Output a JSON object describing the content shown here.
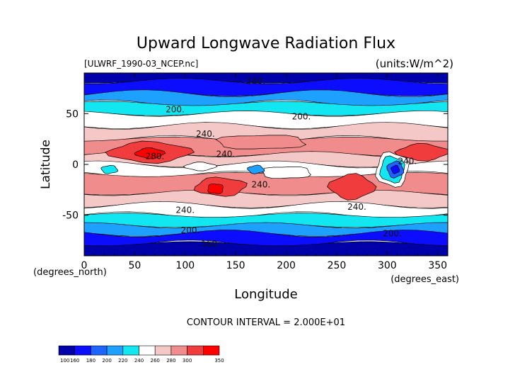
{
  "chart_data": {
    "type": "heatmap",
    "title": "Upward Longwave Radiation Flux",
    "subtitle_left": "[ULWRF_1990-03_NCEP.nc]",
    "subtitle_right": "(units:W/m^2)",
    "xlabel": "Longitude",
    "ylabel": "Latitude",
    "x_unit_label": "(degrees_east)",
    "y_unit_label": "(degrees_north)",
    "xlim": [
      0,
      360
    ],
    "ylim": [
      -90,
      90
    ],
    "x_ticks": [
      0,
      50,
      100,
      150,
      200,
      250,
      300,
      350
    ],
    "y_ticks": [
      -50,
      0,
      50
    ],
    "contour_interval_text": "CONTOUR INTERVAL = 2.000E+01",
    "contour_labels": [
      {
        "text": "160.",
        "lon": 170,
        "lat": 82
      },
      {
        "text": "200.",
        "lon": 90,
        "lat": 54
      },
      {
        "text": "200.",
        "lon": 215,
        "lat": 47
      },
      {
        "text": "240.",
        "lon": 120,
        "lat": 30
      },
      {
        "text": "240.",
        "lon": 140,
        "lat": 10
      },
      {
        "text": "280.",
        "lon": 70,
        "lat": 8
      },
      {
        "text": "240.",
        "lon": 175,
        "lat": -20
      },
      {
        "text": "240.",
        "lon": 320,
        "lat": 3
      },
      {
        "text": "240.",
        "lon": 100,
        "lat": -45
      },
      {
        "text": "240.",
        "lon": 270,
        "lat": -42
      },
      {
        "text": "200.",
        "lon": 105,
        "lat": -65
      },
      {
        "text": "200.",
        "lon": 305,
        "lat": -68
      },
      {
        "text": "160.",
        "lon": 125,
        "lat": -78
      }
    ],
    "colorbar": {
      "levels": [
        "100",
        "160",
        "180",
        "200",
        "220",
        "240",
        "260",
        "280",
        "300",
        "350"
      ],
      "colors": [
        "#0000a8",
        "#0c0cff",
        "#1e64ff",
        "#1ea0ff",
        "#12e6f0",
        "#ffffff",
        "#f5c8c8",
        "#f08c8c",
        "#f03c3c",
        "#ff0000"
      ]
    },
    "zonal_bands": [
      {
        "lat_from": 90,
        "lat_to": 82,
        "color_index": 0
      },
      {
        "lat_from": 82,
        "lat_to": 70,
        "color_index": 1
      },
      {
        "lat_from": 70,
        "lat_to": 60,
        "color_index": 3
      },
      {
        "lat_from": 60,
        "lat_to": 50,
        "color_index": 4
      },
      {
        "lat_from": 50,
        "lat_to": 38,
        "color_index": 5
      },
      {
        "lat_from": 38,
        "lat_to": 25,
        "color_index": 6
      },
      {
        "lat_from": 25,
        "lat_to": 10,
        "color_index": 7
      },
      {
        "lat_from": 10,
        "lat_to": 0,
        "color_index": 6
      },
      {
        "lat_from": 0,
        "lat_to": -10,
        "color_index": 5
      },
      {
        "lat_from": -10,
        "lat_to": -28,
        "color_index": 7
      },
      {
        "lat_from": -28,
        "lat_to": -40,
        "color_index": 6
      },
      {
        "lat_from": -40,
        "lat_to": -50,
        "color_index": 5
      },
      {
        "lat_from": -50,
        "lat_to": -60,
        "color_index": 4
      },
      {
        "lat_from": -60,
        "lat_to": -68,
        "color_index": 3
      },
      {
        "lat_from": -68,
        "lat_to": -78,
        "color_index": 1
      },
      {
        "lat_from": -78,
        "lat_to": -90,
        "color_index": 0
      }
    ],
    "features": [
      {
        "name": "north-africa-arabia-maximum",
        "lon": 65,
        "lat": 12,
        "rlon": 40,
        "rlat": 10,
        "color_index": 8
      },
      {
        "name": "sahara-core-maximum",
        "lon": 65,
        "lat": 11,
        "rlon": 14,
        "rlat": 5,
        "color_index": 9
      },
      {
        "name": "northern-subtropic-pacific-maximum",
        "lon": 175,
        "lat": 22,
        "rlon": 45,
        "rlat": 7,
        "color_index": 7
      },
      {
        "name": "east-pacific-maximum",
        "lon": 335,
        "lat": 12,
        "rlon": 25,
        "rlat": 8,
        "color_index": 8
      },
      {
        "name": "australia-maximum",
        "lon": 135,
        "lat": -22,
        "rlon": 25,
        "rlat": 9,
        "color_index": 8
      },
      {
        "name": "australia-core-maximum",
        "lon": 130,
        "lat": -24,
        "rlon": 8,
        "rlat": 5,
        "color_index": 9
      },
      {
        "name": "south-america-maximum",
        "lon": 265,
        "lat": -22,
        "rlon": 22,
        "rlat": 12,
        "color_index": 8
      },
      {
        "name": "amazon-convection-outer",
        "lon": 305,
        "lat": -5,
        "rlon": 16,
        "rlat": 17,
        "color_index": 5
      },
      {
        "name": "amazon-convection",
        "lon": 305,
        "lat": -5,
        "rlon": 12,
        "rlat": 13,
        "color_index": 4
      },
      {
        "name": "amazon-convection-core",
        "lon": 308,
        "lat": -5,
        "rlon": 8,
        "rlat": 8,
        "color_index": 2
      },
      {
        "name": "amazon-convection-center",
        "lon": 308,
        "lat": -5,
        "rlon": 4,
        "rlat": 4,
        "color_index": 1
      },
      {
        "name": "africa-convection-minimum",
        "lon": 25,
        "lat": -5,
        "rlon": 8,
        "rlat": 4,
        "color_index": 4
      },
      {
        "name": "indonesia-convection-minimum",
        "lon": 115,
        "lat": -2,
        "rlon": 15,
        "rlat": 4,
        "color_index": 5
      },
      {
        "name": "central-pacific-white",
        "lon": 200,
        "lat": -8,
        "rlon": 25,
        "rlat": 6,
        "color_index": 5
      },
      {
        "name": "warm-pool-patch",
        "lon": 170,
        "lat": -5,
        "rlon": 8,
        "rlat": 4,
        "color_index": 3
      }
    ]
  }
}
